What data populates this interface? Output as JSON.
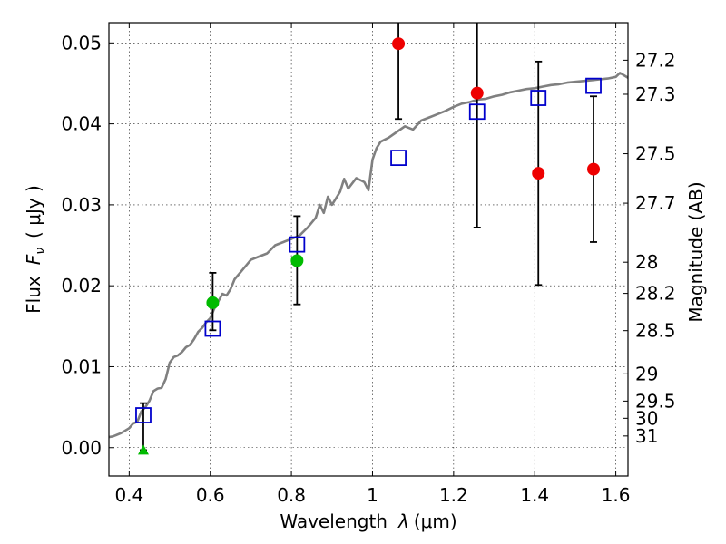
{
  "chart_data": {
    "type": "scatter",
    "xlabel": "Wavelength",
    "xlabel_symbol": "λ",
    "xlabel_unit": "(μm)",
    "ylabel": "Flux",
    "ylabel_symbol": "F",
    "ylabel_subscript": "ν",
    "ylabel_unit": "( μJy )",
    "y2label": "Magnitude (AB)",
    "xlim": [
      0.35,
      1.63
    ],
    "ylim": [
      -0.0035,
      0.0525
    ],
    "grid": true,
    "x_ticks": [
      {
        "value": 0.4,
        "label": "0.4"
      },
      {
        "value": 0.6,
        "label": "0.6"
      },
      {
        "value": 0.8,
        "label": "0.8"
      },
      {
        "value": 1.0,
        "label": "1"
      },
      {
        "value": 1.2,
        "label": "1.2"
      },
      {
        "value": 1.4,
        "label": "1.4"
      },
      {
        "value": 1.6,
        "label": "1.6"
      }
    ],
    "y_ticks": [
      {
        "value": 0.0,
        "label": "0.00"
      },
      {
        "value": 0.01,
        "label": "0.01"
      },
      {
        "value": 0.02,
        "label": "0.02"
      },
      {
        "value": 0.03,
        "label": "0.03"
      },
      {
        "value": 0.04,
        "label": "0.04"
      },
      {
        "value": 0.05,
        "label": "0.05"
      }
    ],
    "magnitude_ticks": [
      {
        "value": 27.2,
        "label": "27.2"
      },
      {
        "value": 27.3,
        "label": "27.3"
      },
      {
        "value": 27.5,
        "label": "27.5"
      },
      {
        "value": 27.7,
        "label": "27.7"
      },
      {
        "value": 28.0,
        "label": "28"
      },
      {
        "value": 28.2,
        "label": "28.2"
      },
      {
        "value": 28.5,
        "label": "28.5"
      },
      {
        "value": 29.0,
        "label": "29"
      },
      {
        "value": 29.5,
        "label": "29.5"
      },
      {
        "value": 30.0,
        "label": "30"
      },
      {
        "value": 31.0,
        "label": "31"
      }
    ],
    "model_spectrum": {
      "color": "#808080",
      "x": [
        0.35,
        0.36,
        0.38,
        0.4,
        0.41,
        0.42,
        0.43,
        0.44,
        0.45,
        0.46,
        0.47,
        0.48,
        0.49,
        0.5,
        0.51,
        0.52,
        0.53,
        0.54,
        0.55,
        0.56,
        0.57,
        0.58,
        0.59,
        0.6,
        0.61,
        0.62,
        0.63,
        0.64,
        0.65,
        0.66,
        0.68,
        0.7,
        0.72,
        0.74,
        0.76,
        0.78,
        0.8,
        0.82,
        0.84,
        0.86,
        0.87,
        0.88,
        0.89,
        0.9,
        0.92,
        0.93,
        0.94,
        0.96,
        0.98,
        0.99,
        1.0,
        1.01,
        1.02,
        1.04,
        1.06,
        1.08,
        1.1,
        1.12,
        1.14,
        1.16,
        1.18,
        1.2,
        1.22,
        1.24,
        1.26,
        1.28,
        1.3,
        1.32,
        1.34,
        1.36,
        1.38,
        1.4,
        1.42,
        1.44,
        1.46,
        1.48,
        1.5,
        1.52,
        1.54,
        1.56,
        1.58,
        1.6,
        1.61,
        1.62,
        1.63
      ],
      "y": [
        0.0013,
        0.0014,
        0.0018,
        0.0024,
        0.003,
        0.0032,
        0.0045,
        0.005,
        0.0058,
        0.007,
        0.0073,
        0.0074,
        0.0085,
        0.0105,
        0.0112,
        0.0114,
        0.0118,
        0.0124,
        0.0127,
        0.0134,
        0.0143,
        0.0148,
        0.0155,
        0.016,
        0.0172,
        0.0181,
        0.019,
        0.0188,
        0.0196,
        0.0208,
        0.022,
        0.0232,
        0.0236,
        0.024,
        0.025,
        0.0254,
        0.0258,
        0.0262,
        0.0272,
        0.0284,
        0.03,
        0.029,
        0.031,
        0.03,
        0.0316,
        0.0332,
        0.032,
        0.0333,
        0.0328,
        0.0318,
        0.0356,
        0.037,
        0.0378,
        0.0383,
        0.039,
        0.0397,
        0.0393,
        0.0404,
        0.0408,
        0.0412,
        0.0416,
        0.0421,
        0.0425,
        0.0427,
        0.043,
        0.0431,
        0.0434,
        0.0436,
        0.0439,
        0.0441,
        0.0443,
        0.0444,
        0.0446,
        0.0448,
        0.0449,
        0.0451,
        0.0452,
        0.0453,
        0.0454,
        0.0455,
        0.0456,
        0.0458,
        0.0463,
        0.046,
        0.0457
      ]
    },
    "series": [
      {
        "marker": "open-square",
        "color": "#0000cc",
        "points": [
          {
            "x": 0.435,
            "y": 0.004
          },
          {
            "x": 0.606,
            "y": 0.0147
          },
          {
            "x": 0.814,
            "y": 0.0251
          },
          {
            "x": 1.064,
            "y": 0.0358
          },
          {
            "x": 1.258,
            "y": 0.0415
          },
          {
            "x": 1.409,
            "y": 0.0432
          },
          {
            "x": 1.545,
            "y": 0.0447
          }
        ]
      },
      {
        "marker": "filled-circle",
        "color": "#00bb00",
        "points": [
          {
            "x": 0.606,
            "y": 0.0179,
            "ylo": 0.0145,
            "yhi": 0.0216
          },
          {
            "x": 0.814,
            "y": 0.0231,
            "ylo": 0.0177,
            "yhi": 0.0286
          }
        ]
      },
      {
        "marker": "filled-triangle",
        "color": "#00bb00",
        "points": [
          {
            "x": 0.435,
            "y": -0.0003,
            "ylo": -0.0003,
            "yhi": 0.0055
          }
        ]
      },
      {
        "marker": "filled-circle",
        "color": "#ee0000",
        "points": [
          {
            "x": 1.064,
            "y": 0.0499,
            "ylo": 0.0406,
            "yhi": 0.053
          },
          {
            "x": 1.258,
            "y": 0.0438,
            "ylo": 0.0272,
            "yhi": 0.053
          },
          {
            "x": 1.409,
            "y": 0.0339,
            "ylo": 0.0201,
            "yhi": 0.0477
          },
          {
            "x": 1.545,
            "y": 0.0344,
            "ylo": 0.0254,
            "yhi": 0.0434
          }
        ]
      }
    ]
  }
}
